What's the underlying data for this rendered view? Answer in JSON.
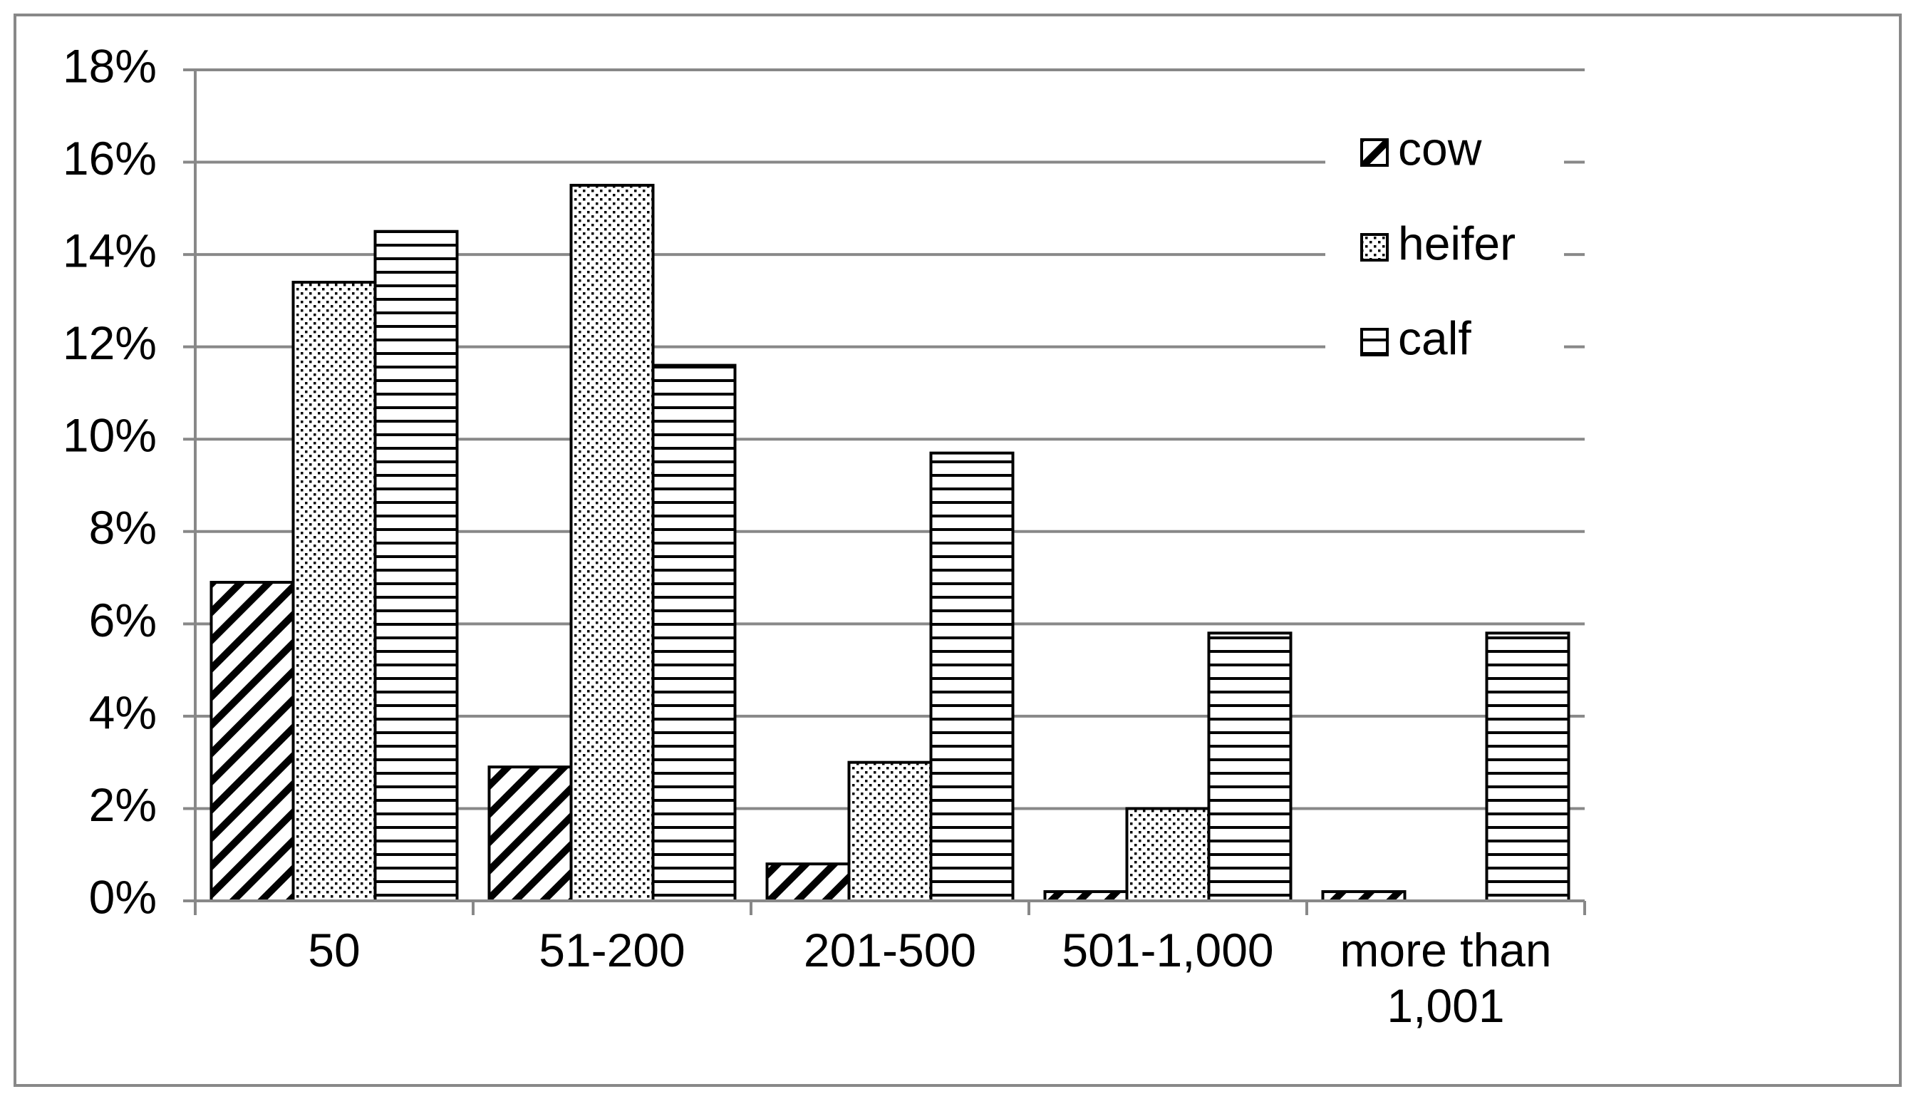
{
  "chart_data": {
    "type": "bar",
    "categories": [
      "50",
      "51-200",
      "201-500",
      "501-1,000",
      "more than 1,001"
    ],
    "series": [
      {
        "name": "cow",
        "color": "#000000",
        "pattern": "diagonal",
        "values": [
          6.9,
          2.9,
          0.8,
          0.2,
          0.2
        ]
      },
      {
        "name": "heifer",
        "color": "#000000",
        "pattern": "dots",
        "values": [
          13.4,
          15.5,
          3.0,
          2.0,
          0
        ]
      },
      {
        "name": "calf",
        "color": "#000000",
        "pattern": "horizontal",
        "values": [
          14.5,
          11.6,
          9.7,
          5.8,
          5.8
        ]
      }
    ],
    "ylim": [
      0,
      18
    ],
    "yticks": [
      {
        "value": 0,
        "label": "0%"
      },
      {
        "value": 2,
        "label": "2%"
      },
      {
        "value": 4,
        "label": "4%"
      },
      {
        "value": 6,
        "label": "6%"
      },
      {
        "value": 8,
        "label": "8%"
      },
      {
        "value": 10,
        "label": "10%"
      },
      {
        "value": 12,
        "label": "12%"
      },
      {
        "value": 14,
        "label": "14%"
      },
      {
        "value": 16,
        "label": "16%"
      },
      {
        "value": 18,
        "label": "18%"
      }
    ],
    "grid": true,
    "legend": "upper right"
  }
}
